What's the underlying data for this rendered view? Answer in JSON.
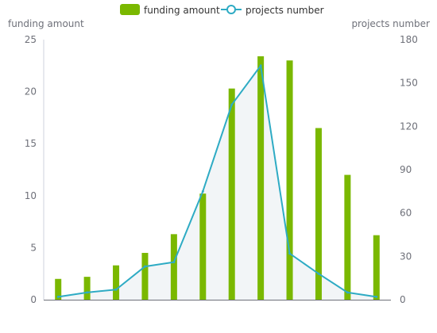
{
  "chart_data": {
    "type": "bar",
    "legend": {
      "placement": "top-center",
      "items": [
        "funding amount",
        "projects number"
      ]
    },
    "categories": [
      "",
      "",
      "",
      "",
      "",
      "",
      "",
      "",
      "",
      "",
      "",
      ""
    ],
    "series": [
      {
        "name": "funding amount",
        "type": "bar",
        "axis": "left",
        "color": "#7ab800",
        "values": [
          2.0,
          2.2,
          3.3,
          4.5,
          6.3,
          10.2,
          20.3,
          23.4,
          23.0,
          16.5,
          12.0,
          6.2
        ]
      },
      {
        "name": "projects number",
        "type": "line",
        "axis": "right",
        "color": "#2eabc4",
        "area": true,
        "values": [
          2,
          5,
          7,
          23,
          26,
          75,
          135,
          162,
          32,
          18,
          5,
          2
        ]
      }
    ],
    "y_left": {
      "label": "funding amount",
      "ylim": [
        0,
        25
      ],
      "ticks": [
        "0",
        "5",
        "10",
        "15",
        "20",
        "25"
      ]
    },
    "y_right": {
      "label": "projects number",
      "ylim": [
        0,
        180
      ],
      "ticks": [
        "0",
        "30",
        "60",
        "90",
        "120",
        "150",
        "180"
      ]
    },
    "grid": false
  }
}
